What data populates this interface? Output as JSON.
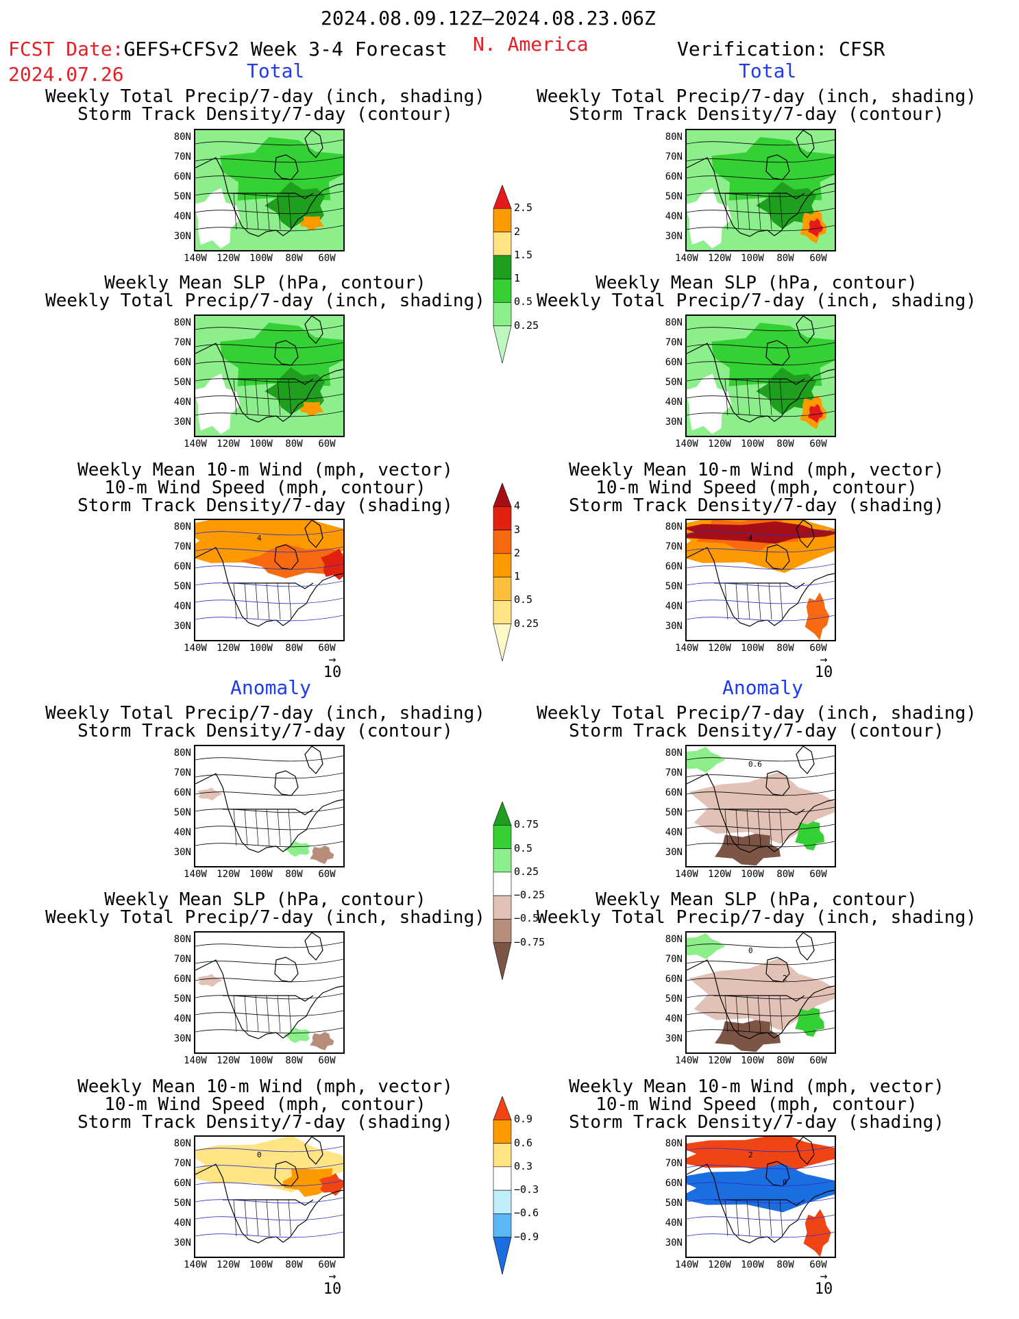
{
  "header": {
    "date_range": "2024.08.09.12Z–2024.08.23.06Z",
    "fcst_prefix": "FCST Date:",
    "fcst_model": "GEFS+CFSv2 Week 3-4 Forecast",
    "fcst_date": "2024.07.26",
    "region": "N. America",
    "verification": "Verification: CFSR"
  },
  "sections": {
    "total": "Total",
    "anomaly": "Anomaly"
  },
  "panel_titles": {
    "precip_storm": [
      "Weekly Total Precip/7-day (inch, shading)",
      "Storm Track Density/7-day (contour)"
    ],
    "slp_precip": [
      "Weekly Mean SLP (hPa, contour)",
      "Weekly Total Precip/7-day (inch, shading)"
    ],
    "wind_storm": [
      "Weekly Mean 10-m Wind (mph, vector)",
      "10-m Wind Speed (mph, contour)",
      "Storm Track Density/7-day (shading)"
    ]
  },
  "axes": {
    "lat_ticks": [
      "80N",
      "70N",
      "60N",
      "50N",
      "40N",
      "30N"
    ],
    "lon_ticks": [
      "140W",
      "120W",
      "100W",
      "80W",
      "60W"
    ]
  },
  "vector_reference": "10",
  "colorbars": {
    "precip_total": {
      "labels": [
        "2.5",
        "2",
        "1.5",
        "1",
        "0.5",
        "0.25"
      ],
      "colors": [
        "#e41a1c",
        "#fd9a00",
        "#ffe484",
        "#1ea01e",
        "#34d034",
        "#8cef8c",
        "#bdf7bd"
      ]
    },
    "storm_total": {
      "labels": [
        "4",
        "3",
        "2",
        "1",
        "0.5",
        "0.25"
      ],
      "colors": [
        "#a50f15",
        "#e0220f",
        "#f76a10",
        "#fd9a00",
        "#fcbf3c",
        "#ffe484",
        "#fff8c8"
      ]
    },
    "precip_anom": {
      "labels": [
        "0.75",
        "0.5",
        "0.25",
        "−0.25",
        "−0.5",
        "−0.75"
      ],
      "colors": [
        "#1ea01e",
        "#34d034",
        "#8cef8c",
        "#ffffff",
        "#e2c2b6",
        "#b88c7a",
        "#7c5546"
      ]
    },
    "storm_anom": {
      "labels": [
        "0.9",
        "0.6",
        "0.3",
        "−0.3",
        "−0.6",
        "−0.9"
      ],
      "colors": [
        "#f04414",
        "#fd9a00",
        "#ffe484",
        "#ffffff",
        "#bfeefa",
        "#5cb8f4",
        "#1a6ee0"
      ]
    }
  },
  "chart_data": [
    {
      "type": "heatmap",
      "panel": "forecast-total-precip-storm",
      "field": "precip_total",
      "colorbar": "precip_total",
      "levels": [
        0.25,
        0.5,
        1,
        1.5,
        2,
        2.5
      ]
    },
    {
      "type": "heatmap",
      "panel": "verification-total-precip-storm",
      "field": "precip_total",
      "colorbar": "precip_total",
      "levels": [
        0.25,
        0.5,
        1,
        1.5,
        2,
        2.5
      ]
    },
    {
      "type": "heatmap",
      "panel": "forecast-total-slp-precip",
      "field": "precip_total",
      "colorbar": "precip_total",
      "levels": [
        0.25,
        0.5,
        1,
        1.5,
        2,
        2.5
      ]
    },
    {
      "type": "heatmap",
      "panel": "verification-total-slp-precip",
      "field": "precip_total",
      "colorbar": "precip_total",
      "levels": [
        0.25,
        0.5,
        1,
        1.5,
        2,
        2.5
      ]
    },
    {
      "type": "heatmap",
      "panel": "forecast-total-wind-storm",
      "field": "storm_density",
      "colorbar": "storm_total",
      "levels": [
        0.25,
        0.5,
        1,
        2,
        3,
        4
      ],
      "contour_labels": [
        "4"
      ]
    },
    {
      "type": "heatmap",
      "panel": "verification-total-wind-storm",
      "field": "storm_density",
      "colorbar": "storm_total",
      "levels": [
        0.25,
        0.5,
        1,
        2,
        3,
        4
      ],
      "contour_labels": [
        "4"
      ]
    },
    {
      "type": "heatmap",
      "panel": "forecast-anomaly-precip-storm",
      "field": "precip_anomaly",
      "colorbar": "precip_anom",
      "levels": [
        -0.75,
        -0.5,
        -0.25,
        0.25,
        0.5,
        0.75
      ]
    },
    {
      "type": "heatmap",
      "panel": "verification-anomaly-precip-storm",
      "field": "precip_anomaly",
      "colorbar": "precip_anom",
      "levels": [
        -0.75,
        -0.5,
        -0.25,
        0.25,
        0.5,
        0.75
      ],
      "contour_labels": [
        "0.6"
      ]
    },
    {
      "type": "heatmap",
      "panel": "forecast-anomaly-slp-precip",
      "field": "precip_anomaly",
      "colorbar": "precip_anom",
      "levels": [
        -0.75,
        -0.5,
        -0.25,
        0.25,
        0.5,
        0.75
      ]
    },
    {
      "type": "heatmap",
      "panel": "verification-anomaly-slp-precip",
      "field": "precip_anomaly",
      "colorbar": "precip_anom",
      "levels": [
        -0.75,
        -0.5,
        -0.25,
        0.25,
        0.5,
        0.75
      ],
      "contour_labels": [
        "0",
        "2"
      ]
    },
    {
      "type": "heatmap",
      "panel": "forecast-anomaly-wind-storm",
      "field": "storm_anomaly",
      "colorbar": "storm_anom",
      "levels": [
        -0.9,
        -0.6,
        -0.3,
        0.3,
        0.6,
        0.9
      ],
      "contour_labels": [
        "0"
      ]
    },
    {
      "type": "heatmap",
      "panel": "verification-anomaly-wind-storm",
      "field": "storm_anomaly",
      "colorbar": "storm_anom",
      "levels": [
        -0.9,
        -0.6,
        -0.3,
        0.3,
        0.6,
        0.9
      ],
      "contour_labels": [
        "2",
        "0"
      ]
    }
  ]
}
